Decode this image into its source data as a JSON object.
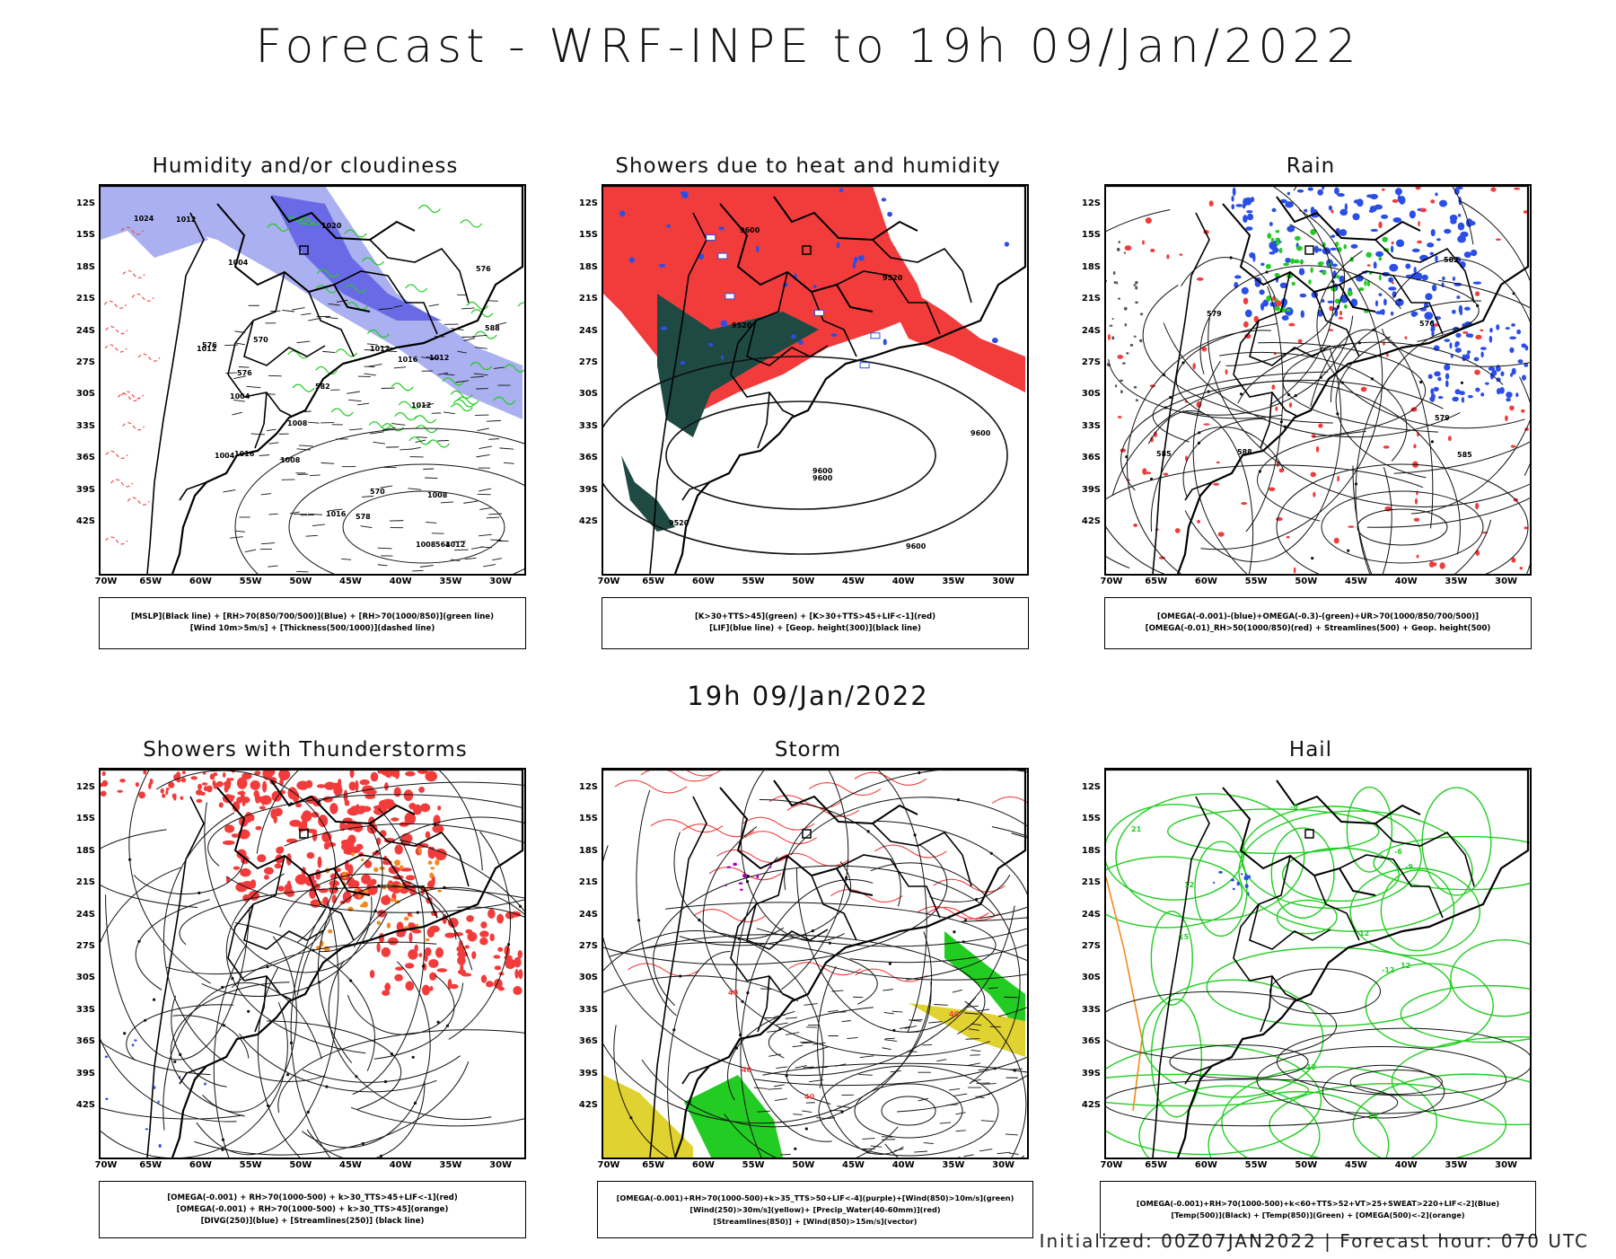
{
  "title": "Forecast - WRF-INPE to 19h 09/Jan/2022",
  "mid_title": "19h 09/Jan/2022",
  "footer": "Initialized: 00Z07JAN2022 | Forecast hour: 070 UTC",
  "lat_labels": [
    "12S",
    "15S",
    "18S",
    "21S",
    "24S",
    "27S",
    "30S",
    "33S",
    "36S",
    "39S",
    "42S"
  ],
  "lon_labels": [
    "70W",
    "65W",
    "60W",
    "55W",
    "50W",
    "45W",
    "40W",
    "35W",
    "30W"
  ],
  "colors": {
    "humidity_blue": "#aab0f0",
    "humidity_darkblue": "#6a6ae6",
    "green_line": "#22cc22",
    "red": "#f23c3c",
    "blue": "#2b4ee6",
    "dark_green": "#1f4a44",
    "yellow": "#e0d230",
    "orange": "#f28a1e"
  },
  "panels": [
    {
      "title": "Humidity and/or cloudiness",
      "legend": [
        "[MSLP](Black line) + [RH>70(850/700/500)](Blue) + [RH>70(1000/850)](green line)",
        "[Wind 10m>5m/s] + [Thickness(500/1000)](dashed line)"
      ],
      "contour_labels": [
        "1008",
        "1012",
        "1012",
        "1012",
        "1012",
        "1004",
        "1008",
        "1004",
        "1016",
        "1016",
        "1012",
        "1020",
        "1024",
        "1008",
        "576",
        "570",
        "582",
        "588",
        "576",
        "570",
        "564",
        "576",
        "578",
        "1004",
        "1008",
        "1012",
        "1016"
      ]
    },
    {
      "title": "Showers due to heat and humidity",
      "legend": [
        "[K>30+TTS>45](green) + [K>30+TTS>45+LIF<-1](red)",
        "[LIF](blue line) + [Geop. height(300)](black line)"
      ],
      "contour_labels": [
        "9600",
        "9600",
        "9600",
        "9520",
        "9600",
        "9520",
        "9600",
        "9520"
      ]
    },
    {
      "title": "Rain",
      "legend": [
        "[OMEGA(-0.001)-(blue)+OMEGA(-0.3)-(green)+UR>70(1000/850/700/500)]",
        "[OMEGA(-0.01)_RH>50(1000/850)(red) + Streamlines(500) + Geop. height(500)"
      ],
      "contour_labels": [
        "585",
        "582",
        "579",
        "579",
        "576",
        "588",
        "585"
      ]
    },
    {
      "title": "Showers with Thunderstorms",
      "legend": [
        "[OMEGA(-0.001) + RH>70(1000-500) + k>30_TTS>45+LIF<-1](red)",
        "[OMEGA(-0.001) + RH>70(1000-500) + k>30_TTS>45](orange)",
        "[DIVG(250)](blue) + [Streamlines(250)] (black line)"
      ],
      "contour_labels": []
    },
    {
      "title": "Storm",
      "legend": [
        "[OMEGA(-0.001)+RH>70(1000-500)+k>35_TTS>50+LIF<-4](purple)+[Wind(850)>10m/s](green)",
        "[Wind(250)>30m/s](yellow)+ [Precip_Water(40-60mm)](red)",
        "[Streamlines(850)] + [Wind(850)>15m/s](vector)"
      ],
      "contour_labels": [
        "40",
        "40",
        "40",
        "40"
      ]
    },
    {
      "title": "Hail",
      "legend": [
        "[OMEGA(-0.001)+RH>70(1000-500)+k<60+TTS>52+VT>25+SWEAT>220+LIF<-2](Blue)",
        "[Temp(500)](Black) + [Temp(850)](Green) + [OMEGA(500)<-2](orange)"
      ],
      "contour_labels": [
        "-6",
        "-6",
        "-9",
        "12",
        "12",
        "15",
        "12",
        "-12",
        "15",
        "21",
        "12"
      ]
    }
  ]
}
